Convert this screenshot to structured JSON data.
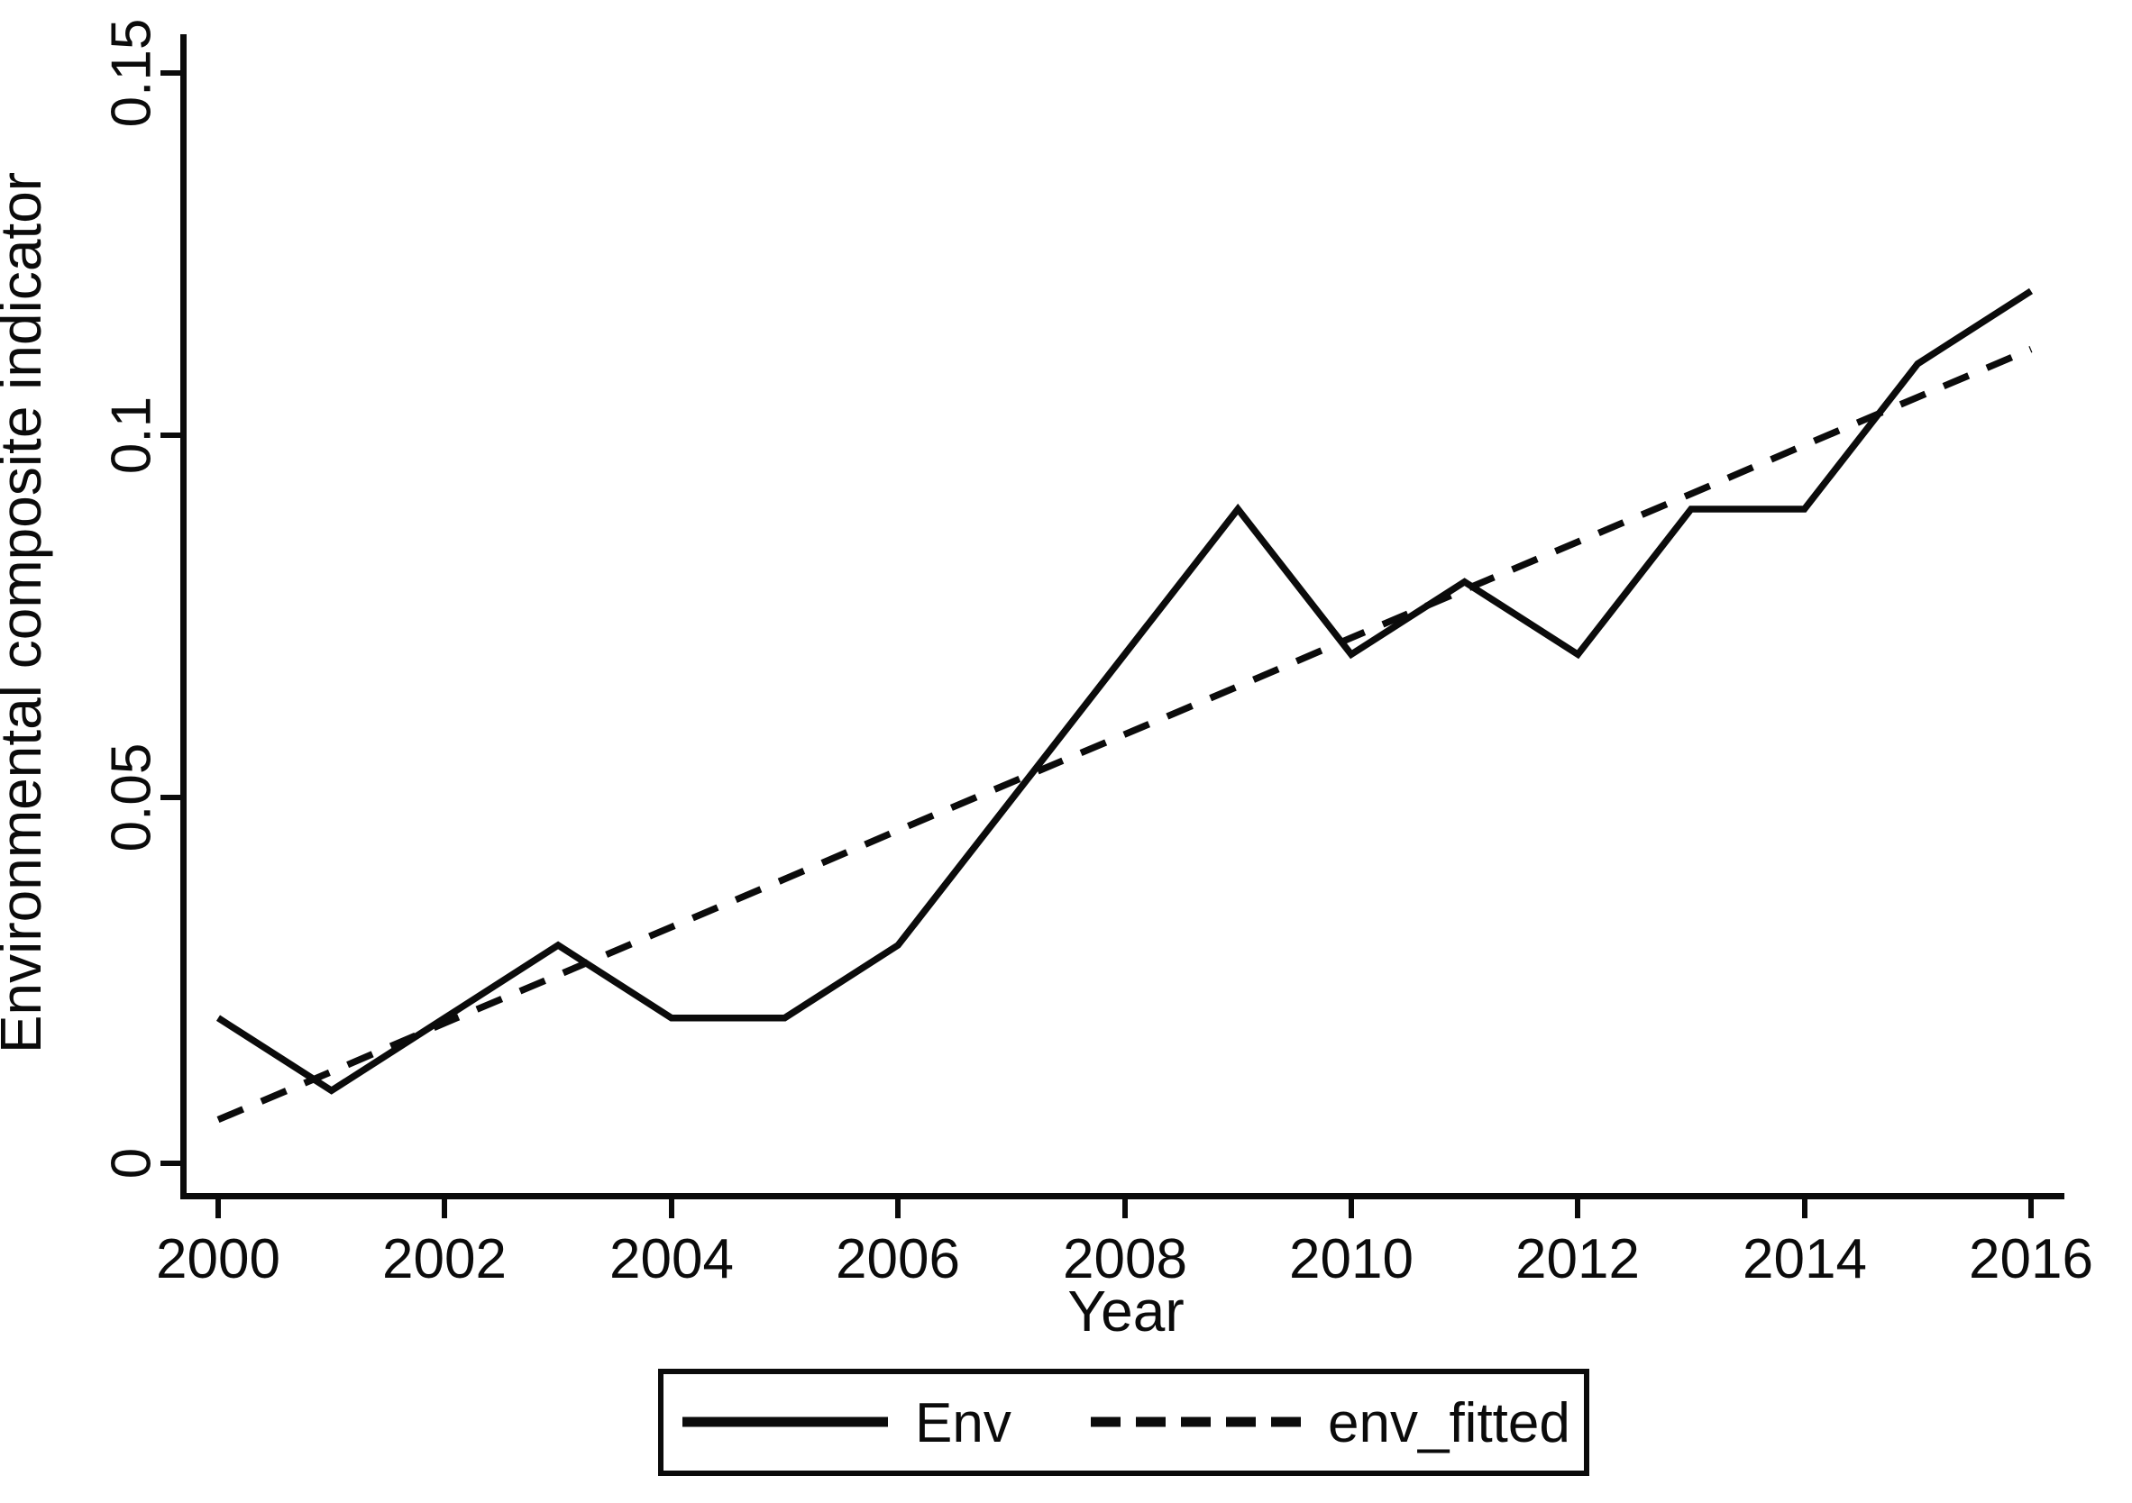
{
  "figure": {
    "background_color": "#ffffff",
    "ink_color": "#0b0b0b"
  },
  "chart_data": {
    "type": "line",
    "title": "",
    "xlabel": "Year",
    "ylabel": "Environmental composite indicator",
    "grid": false,
    "xlim": [
      1999.7,
      2016.3
    ],
    "ylim": [
      -0.0045,
      0.1555
    ],
    "x": [
      2000,
      2001,
      2002,
      2003,
      2004,
      2005,
      2006,
      2007,
      2008,
      2009,
      2010,
      2011,
      2012,
      2013,
      2014,
      2015,
      2016
    ],
    "series": [
      {
        "name": "Env",
        "line_style": "solid",
        "values": [
          0.02,
          0.01,
          0.02,
          0.03,
          0.02,
          0.02,
          0.03,
          0.05,
          0.07,
          0.09,
          0.07,
          0.08,
          0.07,
          0.09,
          0.09,
          0.11,
          0.12
        ]
      },
      {
        "name": "env_fitted",
        "line_style": "dashed",
        "values": [
          0.006,
          0.0126,
          0.0193,
          0.0259,
          0.0325,
          0.0391,
          0.0458,
          0.0524,
          0.059,
          0.0656,
          0.0723,
          0.0789,
          0.0855,
          0.0921,
          0.0988,
          0.1054,
          0.112
        ]
      }
    ],
    "x_ticks": [
      {
        "value": 2000,
        "label": "2000"
      },
      {
        "value": 2002,
        "label": "2002"
      },
      {
        "value": 2004,
        "label": "2004"
      },
      {
        "value": 2006,
        "label": "2006"
      },
      {
        "value": 2008,
        "label": "2008"
      },
      {
        "value": 2010,
        "label": "2010"
      },
      {
        "value": 2012,
        "label": "2012"
      },
      {
        "value": 2014,
        "label": "2014"
      },
      {
        "value": 2016,
        "label": "2016"
      }
    ],
    "y_ticks": [
      {
        "value": 0,
        "label": "0"
      },
      {
        "value": 0.05,
        "label": "0.05"
      },
      {
        "value": 0.1,
        "label": "0.1"
      },
      {
        "value": 0.15,
        "label": "0.15"
      }
    ],
    "legend": {
      "position": "bottom-center",
      "entries": [
        {
          "label": "Env",
          "line_style": "solid"
        },
        {
          "label": "env_fitted",
          "line_style": "dashed"
        }
      ]
    }
  }
}
